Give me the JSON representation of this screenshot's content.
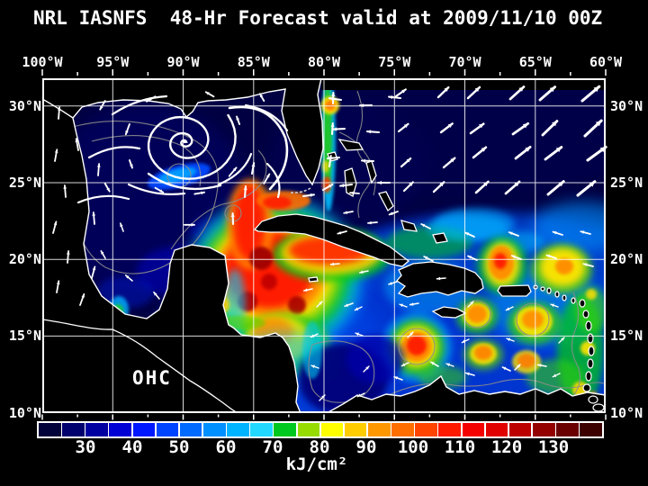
{
  "title": "NRL IASNFS  48-Hr Forecast valid at 2009/11/10 00Z",
  "map": {
    "field_label": "OHC",
    "lon_ticks": [
      "100°W",
      "95°W",
      "90°W",
      "85°W",
      "80°W",
      "75°W",
      "70°W",
      "65°W",
      "60°W"
    ],
    "lat_ticks": [
      "30°N",
      "25°N",
      "20°N",
      "15°N",
      "10°N"
    ]
  },
  "colorbar": {
    "tick_labels": [
      "30",
      "40",
      "50",
      "60",
      "70",
      "80",
      "90",
      "100",
      "110",
      "120",
      "130"
    ],
    "units": "kJ/cm²",
    "range_min": 20,
    "range_max": 140,
    "cell_step": 5,
    "cell_colors": [
      "#02023a",
      "#00006e",
      "#0000a0",
      "#0000d4",
      "#0018ff",
      "#0044ff",
      "#006aff",
      "#0090ff",
      "#00b4ff",
      "#22d8ff",
      "#00c81e",
      "#96dc00",
      "#ffff00",
      "#ffcc00",
      "#ff9800",
      "#ff6e00",
      "#ff4400",
      "#ff1a00",
      "#f40000",
      "#e00000",
      "#bc0000",
      "#940000",
      "#6a0000",
      "#3c0000"
    ]
  },
  "chart_data": {
    "type": "heatmap",
    "title": "NRL IASNFS 48-Hr Forecast valid at 2009/11/10 00Z",
    "field": "OHC (Ocean Heat Content)",
    "units": "kJ/cm²",
    "colorbar_ticks": [
      30,
      40,
      50,
      60,
      70,
      80,
      90,
      100,
      110,
      120,
      130
    ],
    "colorbar_range": [
      20,
      140
    ],
    "lon_range_degW": [
      100,
      60
    ],
    "lat_range_degN": [
      10,
      31.8
    ],
    "overlays": "white surface-current vectors, cyclonic spiral streamlines in northern Gulf of Mexico, gray contour lines, white coastlines",
    "notable": "High OHC (red, >100 kJ/cm²) in NW Caribbean; dark/low values in Gulf of Mexico and NW Atlantic"
  }
}
